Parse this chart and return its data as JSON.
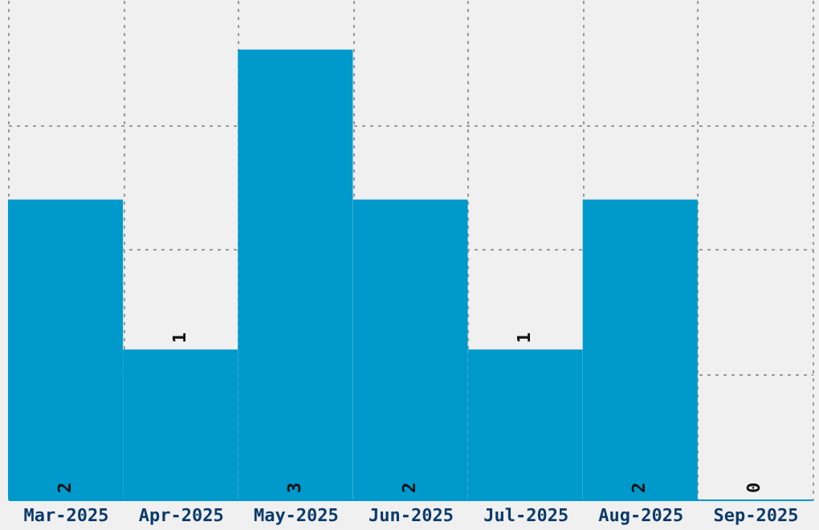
{
  "chart_data": {
    "type": "bar",
    "categories": [
      "Mar-2025",
      "Apr-2025",
      "May-2025",
      "Jun-2025",
      "Jul-2025",
      "Aug-2025",
      "Sep-2025"
    ],
    "values": [
      2,
      1,
      3,
      2,
      1,
      2,
      0
    ],
    "color": "#0099cc",
    "ylim": [
      0,
      3.33
    ],
    "yticks": [
      {
        "value": 0.833,
        "label": null
      },
      {
        "value": 1.667,
        "label": null
      },
      {
        "value": 2.5,
        "label": null
      }
    ],
    "grid": true,
    "data_labels": true,
    "tick_labels": "x"
  }
}
